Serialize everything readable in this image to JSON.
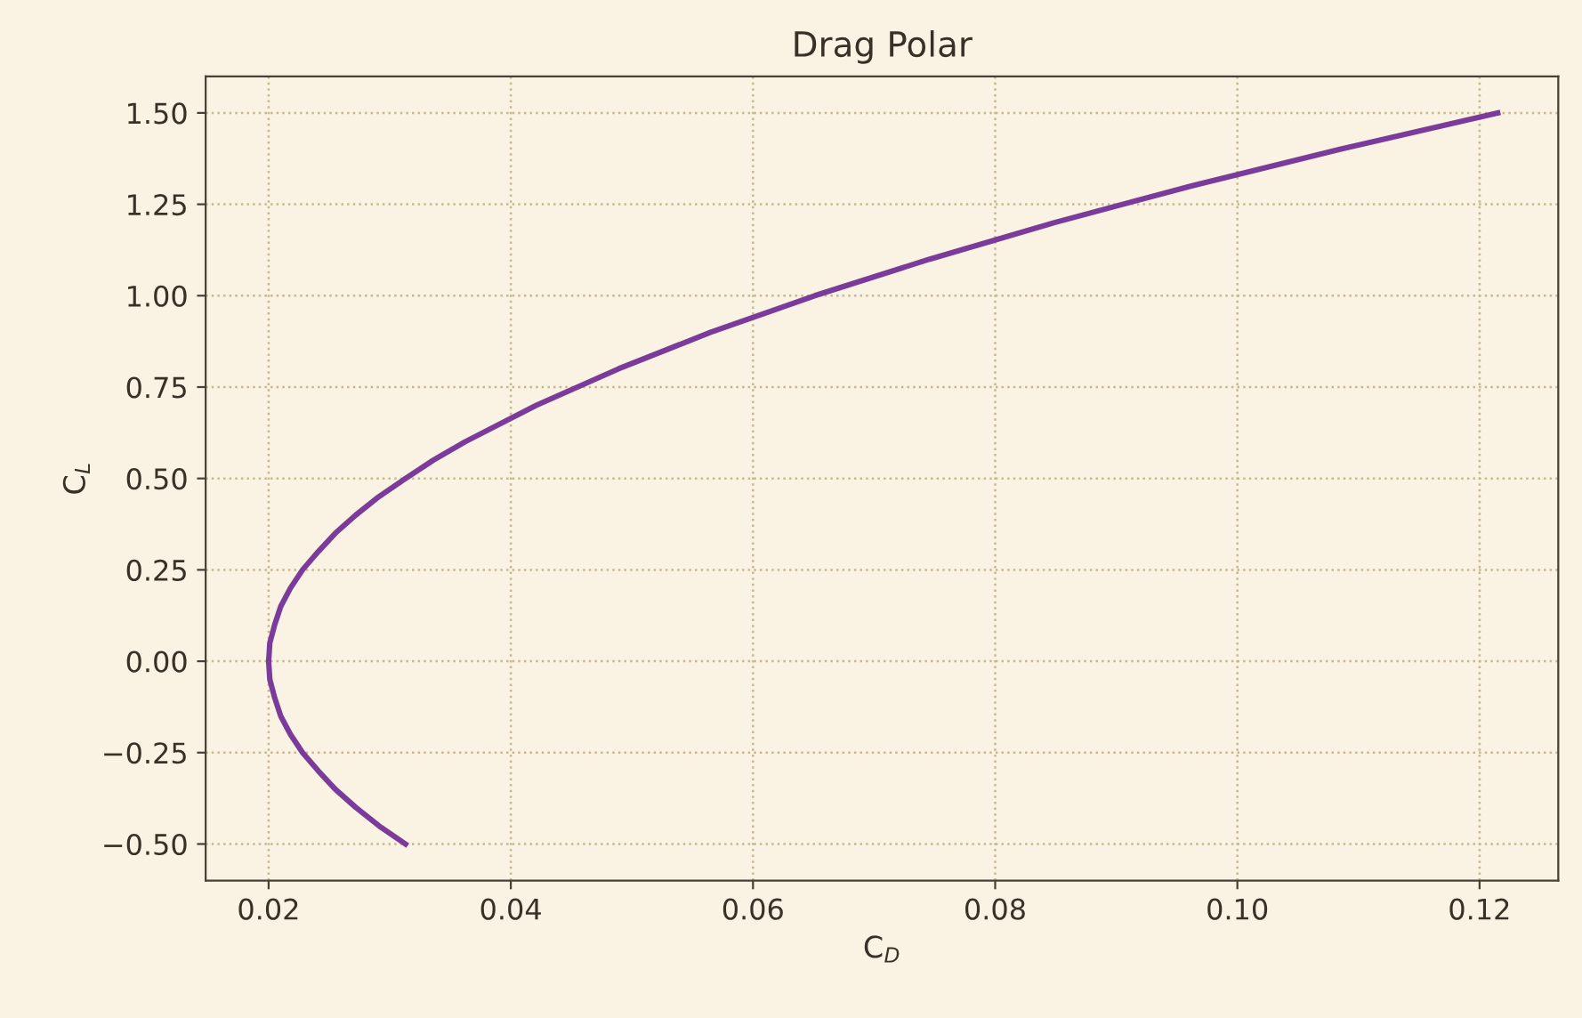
{
  "chart_data": {
    "type": "line",
    "title": "Drag Polar",
    "xlabel": "C$_{D}$",
    "ylabel": "C$_{L}$",
    "x": [
      0.0313,
      0.0291,
      0.0272,
      0.0255,
      0.0241,
      0.0228,
      0.0218,
      0.021,
      0.0205,
      0.0201,
      0.02,
      0.0201,
      0.0205,
      0.021,
      0.0218,
      0.0228,
      0.0241,
      0.0255,
      0.0272,
      0.0291,
      0.0313,
      0.0336,
      0.0362,
      0.0421,
      0.0489,
      0.0565,
      0.0651,
      0.0746,
      0.0849,
      0.0962,
      0.1084,
      0.1215
    ],
    "series": [
      {
        "color": "#7a3b9a",
        "values": [
          -0.5,
          -0.45,
          -0.4,
          -0.35,
          -0.3,
          -0.25,
          -0.2,
          -0.15,
          -0.1,
          -0.05,
          0.0,
          0.05,
          0.1,
          0.15,
          0.2,
          0.25,
          0.3,
          0.35,
          0.4,
          0.45,
          0.5,
          0.55,
          0.6,
          0.7,
          0.8,
          0.9,
          1.0,
          1.1,
          1.2,
          1.3,
          1.4,
          1.5
        ]
      }
    ],
    "xlim": [
      0.0148,
      0.1265
    ],
    "ylim": [
      -0.6,
      1.6
    ],
    "xticks": [
      {
        "value": 0.02,
        "label": "0.02"
      },
      {
        "value": 0.04,
        "label": "0.04"
      },
      {
        "value": 0.06,
        "label": "0.06"
      },
      {
        "value": 0.08,
        "label": "0.08"
      },
      {
        "value": 0.1,
        "label": "0.10"
      },
      {
        "value": 0.12,
        "label": "0.12"
      }
    ],
    "yticks": [
      {
        "value": -0.5,
        "label": "−0.50"
      },
      {
        "value": -0.25,
        "label": "−0.25"
      },
      {
        "value": 0,
        "label": "0.00"
      },
      {
        "value": 0.25,
        "label": "0.25"
      },
      {
        "value": 0.5,
        "label": "0.50"
      },
      {
        "value": 0.75,
        "label": "0.75"
      },
      {
        "value": 1.0,
        "label": "1.00"
      },
      {
        "value": 1.25,
        "label": "1.25"
      },
      {
        "value": 1.5,
        "label": "1.50"
      }
    ],
    "grid": true,
    "marker": "none",
    "line_style": "solid"
  }
}
